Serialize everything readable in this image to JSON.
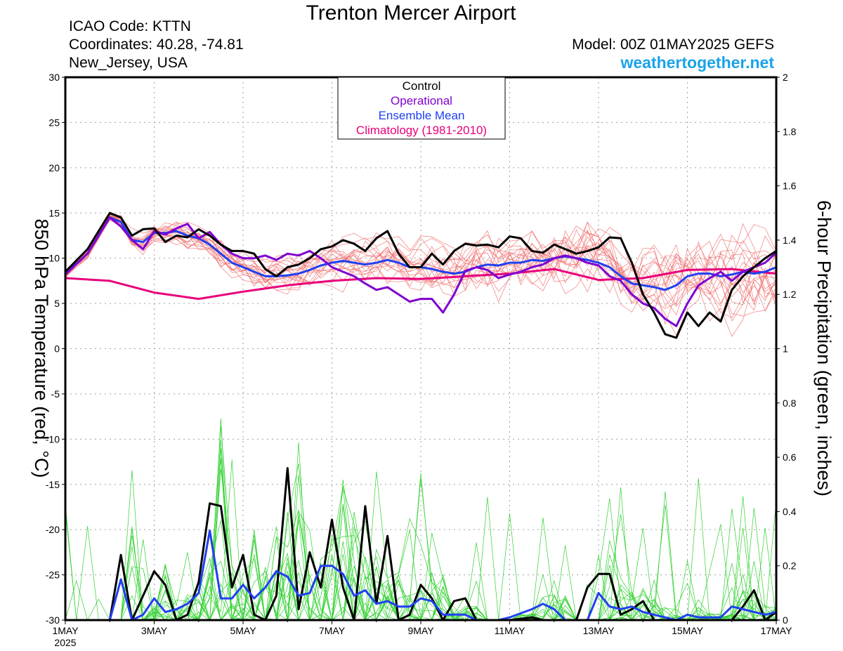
{
  "header": {
    "title": "Trenton Mercer Airport",
    "icao": "ICAO Code: KTTN",
    "coords": "Coordinates: 40.28, -74.81",
    "region": "New_Jersey, USA",
    "model": "Model: 00Z 01MAY2025 GEFS",
    "site": "weathertogether.net"
  },
  "colors": {
    "control": "#000000",
    "operational": "#8000d0",
    "ensemble_mean": "#2040f0",
    "climatology": "#e8007a",
    "members_temp": "#f07070",
    "members_precip": "#30d030",
    "grid": "#a0a0a0"
  },
  "chart_data": {
    "type": "line",
    "title": "Trenton Mercer Airport",
    "xlabel": "",
    "ylabel": "850 hPa Temperature (red, °C)",
    "y2label": "6-hour Precipitation (green, inches)",
    "ylim": [
      -30,
      30
    ],
    "y2lim": [
      0,
      2
    ],
    "yticks": [
      "30",
      "25",
      "20",
      "15",
      "10",
      "5",
      "0",
      "-5",
      "-10",
      "-15",
      "-20",
      "-25",
      "-30"
    ],
    "y2ticks": [
      "2",
      "1.8",
      "1.6",
      "1.4",
      "1.2",
      "1",
      "0.8",
      "0.6",
      "0.4",
      "0.2",
      "0"
    ],
    "xticks": [
      {
        "day": 1,
        "label": "1MAY",
        "sub": "2025"
      },
      {
        "day": 3,
        "label": "3MAY"
      },
      {
        "day": 5,
        "label": "5MAY"
      },
      {
        "day": 7,
        "label": "7MAY"
      },
      {
        "day": 9,
        "label": "9MAY"
      },
      {
        "day": 11,
        "label": "11MAY"
      },
      {
        "day": 13,
        "label": "13MAY"
      },
      {
        "day": 15,
        "label": "15MAY"
      },
      {
        "day": 17,
        "label": "17MAY"
      }
    ],
    "xlim_days": [
      1,
      17
    ],
    "grid": true,
    "legend_position": "top-center",
    "legend": [
      "Control",
      "Operational",
      "Ensemble Mean",
      "Climatology (1981-2010)"
    ],
    "temperature": {
      "control": [
        [
          1,
          8.5
        ],
        [
          1.5,
          11
        ],
        [
          2,
          15
        ],
        [
          2.25,
          14.5
        ],
        [
          2.5,
          12.5
        ],
        [
          2.75,
          13.2
        ],
        [
          3,
          13.3
        ],
        [
          3.25,
          11.8
        ],
        [
          3.5,
          12.5
        ],
        [
          3.75,
          12.3
        ],
        [
          4,
          13.2
        ],
        [
          4.25,
          12.5
        ],
        [
          4.5,
          11.5
        ],
        [
          4.75,
          10.8
        ],
        [
          5,
          10.8
        ],
        [
          5.25,
          10.5
        ],
        [
          5.5,
          8.8
        ],
        [
          5.75,
          8
        ],
        [
          6,
          9
        ],
        [
          6.25,
          9.3
        ],
        [
          6.5,
          10
        ],
        [
          6.75,
          11
        ],
        [
          7,
          11.3
        ],
        [
          7.25,
          12
        ],
        [
          7.5,
          11.6
        ],
        [
          7.75,
          10.8
        ],
        [
          8,
          12.2
        ],
        [
          8.25,
          13
        ],
        [
          8.5,
          10.5
        ],
        [
          8.75,
          9
        ],
        [
          9,
          9
        ],
        [
          9.25,
          10.5
        ],
        [
          9.5,
          9.3
        ],
        [
          9.75,
          10.8
        ],
        [
          10,
          11.6
        ],
        [
          10.25,
          11.4
        ],
        [
          10.5,
          11.5
        ],
        [
          10.75,
          11.2
        ],
        [
          11,
          12.4
        ],
        [
          11.25,
          12.2
        ],
        [
          11.5,
          10.8
        ],
        [
          11.75,
          10.6
        ],
        [
          12,
          11.5
        ],
        [
          12.25,
          11
        ],
        [
          12.5,
          10.5
        ],
        [
          12.75,
          10.8
        ],
        [
          13,
          11.2
        ],
        [
          13.25,
          12.3
        ],
        [
          13.5,
          12.2
        ],
        [
          13.75,
          9.5
        ],
        [
          14,
          6
        ],
        [
          14.25,
          4
        ],
        [
          14.5,
          1.6
        ],
        [
          14.75,
          1.2
        ],
        [
          15,
          4
        ],
        [
          15.25,
          2.5
        ],
        [
          15.5,
          4
        ],
        [
          15.75,
          3
        ],
        [
          16,
          6.5
        ],
        [
          16.25,
          8
        ],
        [
          16.5,
          9
        ],
        [
          16.75,
          10
        ],
        [
          17,
          10.8
        ]
      ],
      "operational": [
        [
          1,
          8.2
        ],
        [
          1.5,
          10.5
        ],
        [
          2,
          14.5
        ],
        [
          2.25,
          13.5
        ],
        [
          2.5,
          12
        ],
        [
          2.75,
          11
        ],
        [
          3,
          13
        ],
        [
          3.25,
          12.6
        ],
        [
          3.5,
          13.3
        ],
        [
          3.75,
          13.8
        ],
        [
          4,
          12.2
        ],
        [
          4.25,
          12.9
        ],
        [
          4.5,
          11.5
        ],
        [
          4.75,
          10.5
        ],
        [
          5,
          10
        ],
        [
          5.25,
          10
        ],
        [
          5.5,
          10.3
        ],
        [
          5.75,
          9.8
        ],
        [
          6,
          10.5
        ],
        [
          6.25,
          10.3
        ],
        [
          6.5,
          10.8
        ],
        [
          6.75,
          10
        ],
        [
          7,
          9
        ],
        [
          7.25,
          8.5
        ],
        [
          7.5,
          8
        ],
        [
          7.75,
          7.2
        ],
        [
          8,
          6.5
        ],
        [
          8.25,
          6.8
        ],
        [
          8.5,
          6
        ],
        [
          8.75,
          5.2
        ],
        [
          9,
          5.5
        ],
        [
          9.25,
          5.5
        ],
        [
          9.5,
          4
        ],
        [
          9.75,
          6
        ],
        [
          10,
          8.6
        ],
        [
          10.25,
          9
        ],
        [
          10.5,
          8.7
        ],
        [
          10.75,
          7.8
        ],
        [
          11,
          8.2
        ],
        [
          11.25,
          8.5
        ],
        [
          11.5,
          9
        ],
        [
          11.75,
          9.3
        ],
        [
          12,
          10
        ],
        [
          12.25,
          10.3
        ],
        [
          12.5,
          10
        ],
        [
          12.75,
          9.5
        ],
        [
          13,
          9.2
        ],
        [
          13.25,
          8
        ],
        [
          13.5,
          7.5
        ],
        [
          13.75,
          6
        ],
        [
          14,
          5
        ],
        [
          14.25,
          4.5
        ],
        [
          14.5,
          3.3
        ],
        [
          14.75,
          2.5
        ],
        [
          15,
          5
        ],
        [
          15.25,
          7
        ],
        [
          15.5,
          7.8
        ],
        [
          15.75,
          8.5
        ],
        [
          16,
          7.5
        ],
        [
          16.25,
          8.5
        ],
        [
          16.5,
          9
        ],
        [
          16.75,
          9.5
        ],
        [
          17,
          10.6
        ]
      ],
      "ensemble_mean": [
        [
          1,
          8.3
        ],
        [
          1.5,
          10.5
        ],
        [
          2,
          14.5
        ],
        [
          2.25,
          14
        ],
        [
          2.5,
          12
        ],
        [
          2.75,
          11.8
        ],
        [
          3,
          12.8
        ],
        [
          3.25,
          12.8
        ],
        [
          3.5,
          13
        ],
        [
          3.75,
          12.5
        ],
        [
          4,
          12.2
        ],
        [
          4.25,
          11.5
        ],
        [
          4.5,
          10.5
        ],
        [
          4.75,
          9.5
        ],
        [
          5,
          9
        ],
        [
          5.25,
          8.5
        ],
        [
          5.5,
          8
        ],
        [
          5.75,
          8
        ],
        [
          6,
          8.1
        ],
        [
          6.25,
          8.3
        ],
        [
          6.5,
          8.7
        ],
        [
          6.75,
          9.2
        ],
        [
          7,
          9.5
        ],
        [
          7.25,
          9.7
        ],
        [
          7.5,
          9.5
        ],
        [
          7.75,
          9.3
        ],
        [
          8,
          9.5
        ],
        [
          8.25,
          9.8
        ],
        [
          8.5,
          9.5
        ],
        [
          8.75,
          9
        ],
        [
          9,
          9
        ],
        [
          9.25,
          8.8
        ],
        [
          9.5,
          8.5
        ],
        [
          9.75,
          8.3
        ],
        [
          10,
          8.5
        ],
        [
          10.25,
          9
        ],
        [
          10.5,
          9.3
        ],
        [
          10.75,
          9.2
        ],
        [
          11,
          9.5
        ],
        [
          11.25,
          9.5
        ],
        [
          11.5,
          9.8
        ],
        [
          11.75,
          9.7
        ],
        [
          12,
          10
        ],
        [
          12.25,
          10.2
        ],
        [
          12.5,
          10
        ],
        [
          12.75,
          9.8
        ],
        [
          13,
          9.5
        ],
        [
          13.25,
          9
        ],
        [
          13.5,
          8
        ],
        [
          13.75,
          7.2
        ],
        [
          14,
          7
        ],
        [
          14.25,
          6.8
        ],
        [
          14.5,
          6.5
        ],
        [
          14.75,
          7
        ],
        [
          15,
          8
        ],
        [
          15.25,
          8.3
        ],
        [
          15.5,
          8.3
        ],
        [
          15.75,
          8
        ],
        [
          16,
          8.2
        ],
        [
          16.25,
          8.5
        ],
        [
          16.5,
          8.3
        ],
        [
          16.75,
          8.5
        ],
        [
          17,
          9
        ]
      ],
      "climatology": [
        [
          1,
          7.8
        ],
        [
          2,
          7.5
        ],
        [
          3,
          6.2
        ],
        [
          4,
          5.5
        ],
        [
          5,
          6.3
        ],
        [
          6,
          7
        ],
        [
          7,
          7.5
        ],
        [
          8,
          7.8
        ],
        [
          9,
          7.7
        ],
        [
          10,
          8
        ],
        [
          11,
          8.3
        ],
        [
          12,
          8.8
        ],
        [
          13,
          7.6
        ],
        [
          14,
          7.8
        ],
        [
          15,
          8.7
        ],
        [
          16,
          8.8
        ],
        [
          17,
          8.3
        ]
      ]
    },
    "precipitation": {
      "control": [
        [
          1,
          0
        ],
        [
          2,
          0
        ],
        [
          2.25,
          0.24
        ],
        [
          2.5,
          0
        ],
        [
          3,
          0.18
        ],
        [
          3.25,
          0.13
        ],
        [
          3.5,
          0
        ],
        [
          3.75,
          0.02
        ],
        [
          4,
          0.14
        ],
        [
          4.25,
          0.43
        ],
        [
          4.5,
          0.42
        ],
        [
          4.75,
          0.12
        ],
        [
          5,
          0.24
        ],
        [
          5.25,
          0.02
        ],
        [
          5.5,
          0
        ],
        [
          5.75,
          0.09
        ],
        [
          6,
          0.56
        ],
        [
          6.25,
          0.04
        ],
        [
          6.5,
          0.25
        ],
        [
          6.75,
          0.12
        ],
        [
          7,
          0.37
        ],
        [
          7.25,
          0.12
        ],
        [
          7.5,
          0
        ],
        [
          7.75,
          0.42
        ],
        [
          8,
          0.06
        ],
        [
          8.25,
          0.31
        ],
        [
          8.5,
          0
        ],
        [
          8.75,
          0.02
        ],
        [
          9,
          0.13
        ],
        [
          9.25,
          0.08
        ],
        [
          9.5,
          0
        ],
        [
          9.75,
          0.07
        ],
        [
          10,
          0.08
        ],
        [
          10.25,
          0
        ],
        [
          11,
          0
        ],
        [
          11.5,
          0.01
        ],
        [
          11.75,
          0
        ],
        [
          12.5,
          0
        ],
        [
          12.75,
          0.12
        ],
        [
          13,
          0.17
        ],
        [
          13.25,
          0.17
        ],
        [
          13.5,
          0.02
        ],
        [
          13.75,
          0.04
        ],
        [
          14,
          0.07
        ],
        [
          14.25,
          0
        ],
        [
          14.75,
          0
        ],
        [
          15,
          0
        ],
        [
          16,
          0
        ],
        [
          16.25,
          0.05
        ],
        [
          16.5,
          0.11
        ],
        [
          16.75,
          0
        ],
        [
          17,
          0.03
        ]
      ],
      "ensemble_mean": [
        [
          1,
          0
        ],
        [
          2,
          0
        ],
        [
          2.25,
          0.15
        ],
        [
          2.5,
          0
        ],
        [
          2.75,
          0.02
        ],
        [
          3,
          0.08
        ],
        [
          3.25,
          0.03
        ],
        [
          3.5,
          0.04
        ],
        [
          3.75,
          0.06
        ],
        [
          4,
          0.1
        ],
        [
          4.25,
          0.33
        ],
        [
          4.5,
          0.08
        ],
        [
          4.75,
          0.08
        ],
        [
          5,
          0.13
        ],
        [
          5.25,
          0.08
        ],
        [
          5.5,
          0.12
        ],
        [
          5.75,
          0.18
        ],
        [
          6,
          0.16
        ],
        [
          6.25,
          0.09
        ],
        [
          6.5,
          0.1
        ],
        [
          6.75,
          0.2
        ],
        [
          7,
          0.2
        ],
        [
          7.25,
          0.17
        ],
        [
          7.5,
          0.09
        ],
        [
          7.75,
          0.11
        ],
        [
          8,
          0.06
        ],
        [
          8.25,
          0.07
        ],
        [
          8.5,
          0.05
        ],
        [
          8.75,
          0.05
        ],
        [
          9,
          0.08
        ],
        [
          9.25,
          0.07
        ],
        [
          9.5,
          0.02
        ],
        [
          9.75,
          0.02
        ],
        [
          10,
          0.02
        ],
        [
          10.25,
          0
        ],
        [
          10.75,
          0
        ],
        [
          11,
          0.01
        ],
        [
          11.5,
          0.04
        ],
        [
          11.75,
          0.06
        ],
        [
          12,
          0.04
        ],
        [
          12.25,
          0
        ],
        [
          12.75,
          0
        ],
        [
          13,
          0.1
        ],
        [
          13.25,
          0.05
        ],
        [
          13.5,
          0.04
        ],
        [
          13.75,
          0.05
        ],
        [
          14,
          0.03
        ],
        [
          14.25,
          0.02
        ],
        [
          14.75,
          0
        ],
        [
          15,
          0.02
        ],
        [
          15.25,
          0.01
        ],
        [
          15.5,
          0.01
        ],
        [
          15.75,
          0.01
        ],
        [
          16,
          0.05
        ],
        [
          16.25,
          0.04
        ],
        [
          16.5,
          0.03
        ],
        [
          16.75,
          0.02
        ],
        [
          17,
          0.03
        ]
      ]
    }
  }
}
